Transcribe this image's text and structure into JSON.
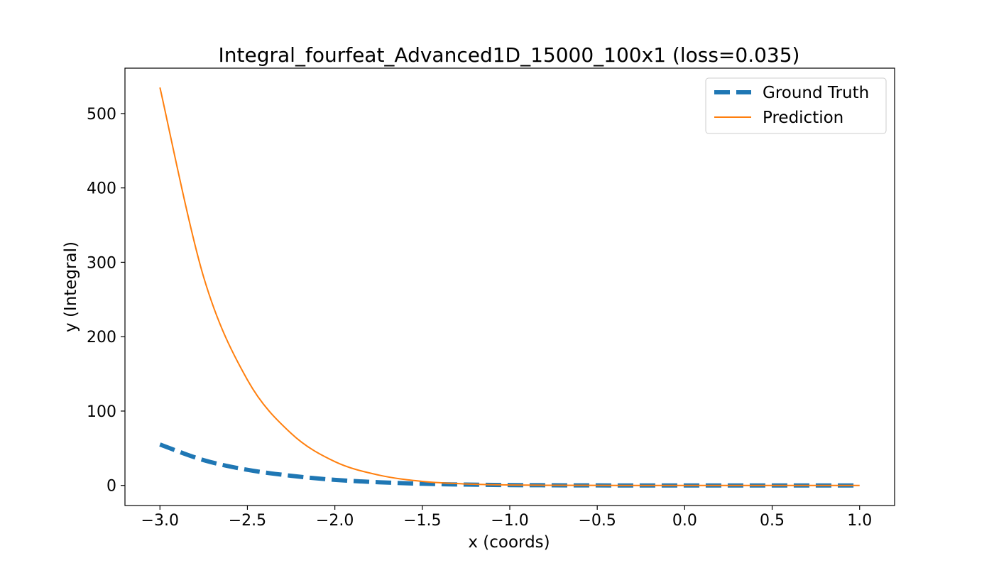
{
  "chart_data": {
    "type": "line",
    "title": "Integral_fourfeat_Advanced1D_15000_100x1 (loss=0.035)",
    "xlabel": "x (coords)",
    "ylabel": "y (Integral)",
    "xlim": [
      -3.2,
      1.2
    ],
    "ylim": [
      -27,
      561
    ],
    "xticks": [
      -3.0,
      -2.5,
      -2.0,
      -1.5,
      -1.0,
      -0.5,
      0.0,
      0.5,
      1.0
    ],
    "xtick_labels": [
      "−3.0",
      "−2.5",
      "−2.0",
      "−1.5",
      "−1.0",
      "−0.5",
      "0.0",
      "0.5",
      "1.0"
    ],
    "yticks": [
      0,
      100,
      200,
      300,
      400,
      500
    ],
    "ytick_labels": [
      "0",
      "100",
      "200",
      "300",
      "400",
      "500"
    ],
    "grid": false,
    "legend_position": "top-right",
    "x": [
      -3.0,
      -2.75,
      -2.5,
      -2.25,
      -2.0,
      -1.75,
      -1.5,
      -1.25,
      -1.0,
      -0.75,
      -0.5,
      -0.25,
      0.0,
      0.25,
      0.5,
      0.75,
      1.0
    ],
    "series": [
      {
        "name": "Ground Truth",
        "color": "#1f77b4",
        "style": "dashed",
        "values": [
          55,
          34,
          21,
          13,
          7.5,
          4.3,
          2.3,
          1.1,
          0.5,
          0.2,
          0.05,
          0,
          0,
          0,
          0,
          0,
          0
        ]
      },
      {
        "name": "Prediction",
        "color": "#ff7f0e",
        "style": "solid",
        "values": [
          535,
          280,
          142,
          70,
          32,
          14,
          5.5,
          2,
          0.6,
          0.2,
          0.05,
          0,
          0,
          0,
          0,
          0,
          0
        ]
      }
    ]
  }
}
